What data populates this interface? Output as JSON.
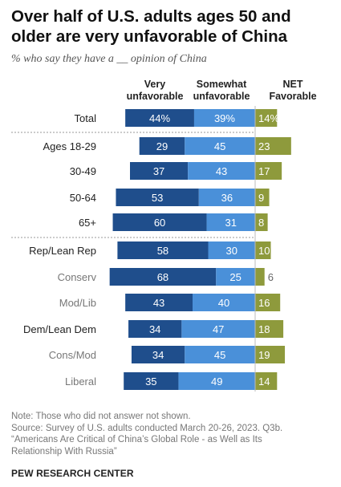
{
  "title": "Over half of U.S. adults ages 50 and older are very unfavorable of China",
  "subtitle": "% who say they have a __ opinion of China",
  "chart_data": {
    "type": "bar",
    "orientation": "horizontal-diverging",
    "columns": [
      "Very unfavorable",
      "Somewhat unfavorable",
      "NET Favorable"
    ],
    "colors": {
      "very_unfavorable": "#1f4e8c",
      "somewhat_unfavorable": "#4a90d9",
      "net_favorable": "#8e9a3c",
      "divider": "#bbbbbb"
    },
    "rows": [
      {
        "label": "Total",
        "style": "main",
        "very": 44,
        "somewhat": 39,
        "favorable": 14,
        "very_text": "44%",
        "somewhat_text": "39%",
        "favorable_text": "14%"
      },
      {
        "label": "Ages 18-29",
        "style": "main",
        "very": 29,
        "somewhat": 45,
        "favorable": 23,
        "very_text": "29",
        "somewhat_text": "45",
        "favorable_text": "23"
      },
      {
        "label": "30-49",
        "style": "main",
        "very": 37,
        "somewhat": 43,
        "favorable": 17,
        "very_text": "37",
        "somewhat_text": "43",
        "favorable_text": "17"
      },
      {
        "label": "50-64",
        "style": "main",
        "very": 53,
        "somewhat": 36,
        "favorable": 9,
        "very_text": "53",
        "somewhat_text": "36",
        "favorable_text": "9"
      },
      {
        "label": "65+",
        "style": "main",
        "very": 60,
        "somewhat": 31,
        "favorable": 8,
        "very_text": "60",
        "somewhat_text": "31",
        "favorable_text": "8"
      },
      {
        "label": "Rep/Lean Rep",
        "style": "main",
        "very": 58,
        "somewhat": 30,
        "favorable": 10,
        "very_text": "58",
        "somewhat_text": "30",
        "favorable_text": "10"
      },
      {
        "label": "Conserv",
        "style": "sub",
        "very": 68,
        "somewhat": 25,
        "favorable": 6,
        "very_text": "68",
        "somewhat_text": "25",
        "favorable_text": "6"
      },
      {
        "label": "Mod/Lib",
        "style": "sub",
        "very": 43,
        "somewhat": 40,
        "favorable": 16,
        "very_text": "43",
        "somewhat_text": "40",
        "favorable_text": "16"
      },
      {
        "label": "Dem/Lean Dem",
        "style": "main",
        "very": 34,
        "somewhat": 47,
        "favorable": 18,
        "very_text": "34",
        "somewhat_text": "47",
        "favorable_text": "18"
      },
      {
        "label": "Cons/Mod",
        "style": "sub",
        "very": 34,
        "somewhat": 45,
        "favorable": 19,
        "very_text": "34",
        "somewhat_text": "45",
        "favorable_text": "19"
      },
      {
        "label": "Liberal",
        "style": "sub",
        "very": 35,
        "somewhat": 49,
        "favorable": 14,
        "very_text": "35",
        "somewhat_text": "49",
        "favorable_text": "14"
      }
    ]
  },
  "headers": {
    "very_line1": "Very",
    "very_line2": "unfavorable",
    "somewhat_line1": "Somewhat",
    "somewhat_line2": "unfavorable",
    "net_line1": "NET",
    "net_line2": "Favorable"
  },
  "notes": {
    "note": "Note: Those who did not answer not shown.",
    "source_line1": "Source: Survey of U.S. adults conducted March 20-26, 2023. Q3b.",
    "source_line2": "“Americans Are Critical of China’s Global Role - as Well as Its",
    "source_line3": "Relationship With Russia”"
  },
  "brand": "PEW RESEARCH CENTER"
}
